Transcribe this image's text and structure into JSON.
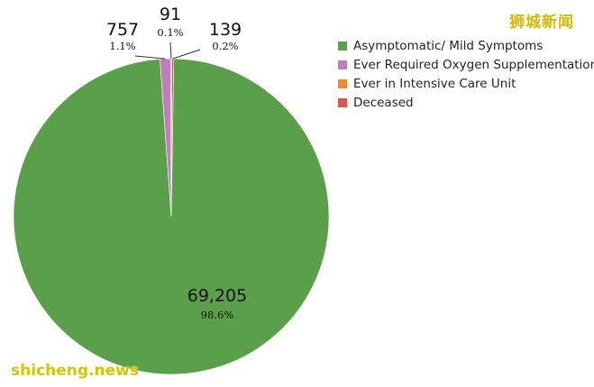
{
  "watermarks": {
    "top_right": "狮城新闻",
    "bottom_left": "shicheng.news"
  },
  "chart_data": {
    "type": "pie",
    "title": "",
    "legend_position": "top-right",
    "slices": [
      {
        "label": "Asymptomatic/ Mild Symptoms",
        "value": 69205,
        "value_label": "69,205",
        "percent_label": "98.6%",
        "color": "#5a9f4a"
      },
      {
        "label": "Ever Required Oxygen Supplementation",
        "value": 757,
        "value_label": "757",
        "percent_label": "1.1%",
        "color": "#c07fbb"
      },
      {
        "label": "Ever in Intensive Care Unit",
        "value": 91,
        "value_label": "91",
        "percent_label": "0.1%",
        "color": "#f08a2c"
      },
      {
        "label": "Deceased",
        "value": 139,
        "value_label": "139",
        "percent_label": "0.2%",
        "color": "#e3524d"
      }
    ]
  }
}
